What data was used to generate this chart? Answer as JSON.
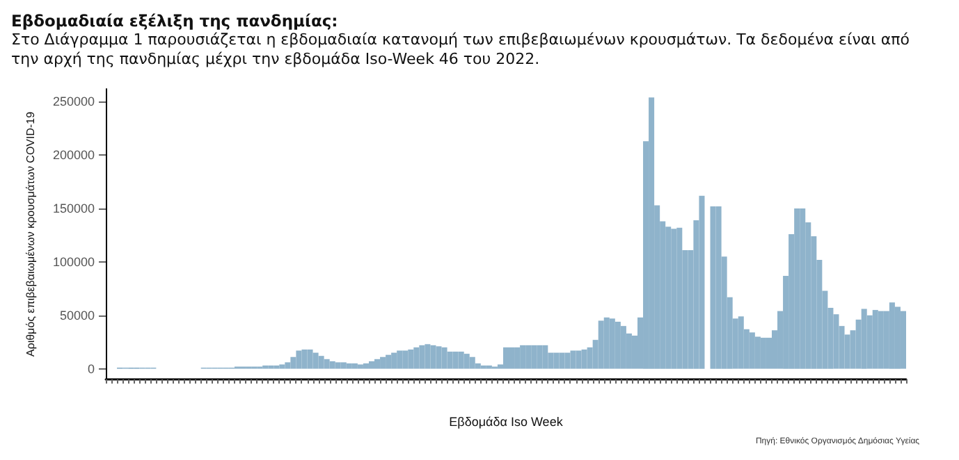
{
  "chart_data": {
    "type": "bar",
    "title": "Εβδομαδιαία εξέλιξη της πανδημίας:",
    "subtitle": "Στο Διάγραμμα 1 παρουσιάζεται η εβδομαδιαία κατανομή των επιβεβαιωμένων κρουσμάτων. Τα δεδομένα είναι από την αρχή της πανδημίας μέχρι την εβδομάδα Iso-Week 46 του 2022.",
    "xlabel": "Εβδομάδα Iso Week",
    "ylabel": "Αριθμός επιβεβαιωμένων κρουσμάτων COVID-19",
    "annotations": [
      "Πηγή: Εθνικός Οργανισμός Δημόσιας Υγείας"
    ],
    "categories": [
      null,
      null,
      null,
      null,
      null,
      null,
      null,
      null,
      null,
      null,
      null,
      null,
      null,
      null,
      null,
      null,
      null,
      null,
      null,
      null,
      null,
      null,
      null,
      null,
      null,
      null,
      null,
      null,
      null,
      null,
      null,
      null,
      null,
      null,
      null,
      null,
      null,
      null,
      null,
      null,
      null,
      null,
      null,
      null,
      null,
      null,
      null,
      null,
      null,
      null,
      null,
      null,
      null,
      null,
      null,
      null,
      null,
      null,
      null,
      null,
      null,
      null,
      null,
      null,
      null,
      null,
      null,
      null,
      null,
      null,
      null,
      null,
      null,
      null,
      null,
      null,
      null,
      null,
      null,
      null,
      null,
      null,
      null,
      null,
      null,
      null,
      null,
      null,
      null,
      null,
      null,
      null,
      null,
      null,
      null,
      null,
      null,
      null,
      null,
      null,
      null,
      null,
      null,
      null,
      null,
      null,
      null,
      null,
      null,
      null,
      null,
      null,
      null,
      null,
      null,
      null,
      null,
      null,
      null,
      null,
      null,
      null,
      null,
      null,
      null,
      null,
      null,
      null,
      null,
      null,
      null,
      null,
      null,
      null,
      null,
      null,
      null,
      null,
      null,
      null,
      null,
      null,
      null
    ],
    "series": [
      {
        "color": "#8fb3cb",
        "values": [
          0,
          0,
          1000,
          1000,
          1000,
          1000,
          1000,
          1000,
          1000,
          0,
          0,
          0,
          0,
          0,
          0,
          0,
          0,
          1000,
          1000,
          1000,
          1000,
          1000,
          1000,
          2000,
          2000,
          2000,
          2000,
          2000,
          3000,
          3000,
          3000,
          4000,
          6000,
          11000,
          17000,
          18000,
          18000,
          15000,
          12000,
          9000,
          7000,
          6000,
          6000,
          5000,
          5000,
          4000,
          5000,
          7000,
          9000,
          11000,
          13000,
          15000,
          17000,
          17000,
          18000,
          20000,
          22000,
          23000,
          22000,
          21000,
          20000,
          16000,
          16000,
          16000,
          14000,
          11000,
          5000,
          3000,
          3000,
          2000,
          4000,
          20000,
          20000,
          20000,
          22000,
          22000,
          22000,
          22000,
          22000,
          15000,
          15000,
          15000,
          15000,
          17000,
          17000,
          18000,
          20000,
          27000,
          45000,
          48000,
          47000,
          44000,
          40000,
          33000,
          31000,
          48000,
          213000,
          254000,
          153000,
          138000,
          133000,
          131000,
          132000,
          111000,
          111000,
          139000,
          162000,
          null,
          152000,
          152000,
          105000,
          67000,
          47000,
          49000,
          37000,
          34000,
          30000,
          29000,
          29000,
          36000,
          54000,
          87000,
          126000,
          150000,
          150000,
          137000,
          124000,
          102000,
          73000,
          57000,
          51000,
          40000,
          32000,
          36000,
          46000,
          56000,
          50000,
          55000,
          54000,
          54000,
          62000,
          58000,
          54000
        ]
      }
    ],
    "ylim": [
      -10000,
      262000
    ],
    "yticks": [
      0,
      50000,
      100000,
      150000,
      200000,
      250000
    ],
    "grid": false
  }
}
